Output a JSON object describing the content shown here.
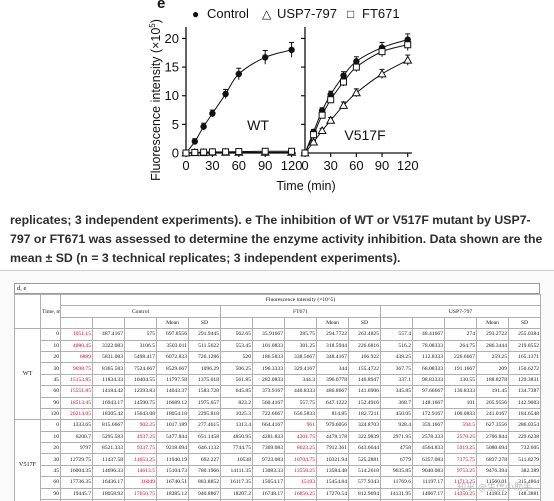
{
  "figure": {
    "panel_letter": "e",
    "legend": [
      "Control",
      "USP7-797",
      "FT671"
    ],
    "legend_symbols": [
      "●",
      "△",
      "□"
    ],
    "ylabel": "Fluorescence intensity (×10",
    "ylabel_sup": "5",
    "ylabel_close": ")",
    "xlabel": "Time (min)",
    "panel_labels": [
      "WT",
      "V517F"
    ]
  },
  "chart_data": {
    "type": "line",
    "xlabel": "Time (min)",
    "ylabel": "Fluorescence intensity (×10^5)",
    "x": [
      0,
      10,
      20,
      30,
      45,
      60,
      90,
      120
    ],
    "xticks": [
      0,
      30,
      60,
      90,
      120
    ],
    "yticks": [
      0,
      5,
      10,
      15,
      20
    ],
    "ylim": [
      0,
      22
    ],
    "xlim": [
      0,
      125
    ],
    "legend_position": "top",
    "colors": {
      "axis": "#111111",
      "series": "#111111",
      "error": "#111111"
    },
    "panels": [
      {
        "label": "WT",
        "series": [
          {
            "name": "Control",
            "marker": "filled-circle",
            "values": [
              0,
              2.0,
              4.6,
              6.9,
              10.3,
              13.8,
              16.7,
              18.0
            ],
            "error": [
              0.3,
              0.5,
              0.6,
              0.6,
              0.8,
              1.0,
              1.2,
              1.3
            ],
            "fit": true
          },
          {
            "name": "USP7-797",
            "marker": "open-triangle",
            "values": [
              0,
              0.05,
              0.05,
              0.1,
              0.1,
              0.1,
              0.1,
              0.1
            ],
            "error": [
              0,
              0,
              0,
              0,
              0,
              0,
              0,
              0
            ],
            "fit": false
          },
          {
            "name": "FT671",
            "marker": "open-square",
            "values": [
              0,
              0.1,
              0.15,
              0.2,
              0.2,
              0.25,
              0.3,
              0.3
            ],
            "error": [
              0,
              0,
              0,
              0,
              0,
              0,
              0,
              0
            ],
            "fit": false
          }
        ]
      },
      {
        "label": "V517F",
        "series": [
          {
            "name": "Control",
            "marker": "filled-circle",
            "values": [
              0,
              3.7,
              7.4,
              10.2,
              13.5,
              16.0,
              18.4,
              19.8
            ],
            "error": [
              0.3,
              0.4,
              0.5,
              0.6,
              0.7,
              0.8,
              0.9,
              1.0
            ],
            "fit": true
          },
          {
            "name": "USP7-797",
            "marker": "open-triangle",
            "values": [
              0,
              1.9,
              3.9,
              5.7,
              8.3,
              10.5,
              13.8,
              16.2
            ],
            "error": [
              0.2,
              0.3,
              0.4,
              0.5,
              0.6,
              0.7,
              0.8,
              0.9
            ],
            "fit": true
          },
          {
            "name": "FT671",
            "marker": "open-square",
            "values": [
              0,
              3.2,
              6.6,
              9.3,
              12.4,
              15.0,
              17.7,
              18.9
            ],
            "error": [
              0.3,
              0.4,
              0.5,
              0.6,
              0.7,
              0.8,
              0.9,
              1.0
            ],
            "fit": true
          }
        ]
      }
    ]
  },
  "caption": {
    "text": "replicates; 3 independent experiments). e The inhibition of WT or V517F mutant by USP7-797 or FT671 was assessed to determine the enzyme activity inhibition. Data shown are the mean ± SD (n = 3 technical replicates; 3 independent experiments)."
  },
  "table": {
    "label": "d, e",
    "header_main": "Fluorescence intensity (×10^5)",
    "time_header": "Time, min",
    "groups": [
      "Control",
      "FT671",
      "USP7-797"
    ],
    "sub_headers": [
      "Mean",
      "SD",
      "Mean",
      "SD",
      "Mean",
      "SD"
    ],
    "red_color": "#d0021b",
    "watermark": "知乎 @生信小助手",
    "sections": [
      {
        "name": "WT",
        "rows": [
          {
            "time": "0",
            "cells": [
              "1051.15",
              "487.4167",
              "575",
              "697.8556",
              "291.9445",
              "562.65",
              "35.91667",
              "285.75",
              "294.7722",
              "263.4825",
              "557.4",
              "48.41667",
              "274",
              "293.2722",
              "255.0384"
            ],
            "red": [
              0
            ]
          },
          {
            "time": "10",
            "cells": [
              "4080.45",
              "3322.083",
              "3106.5",
              "3503.011",
              "511.5622",
              "553.45",
              "101.0833",
              "301.25",
              "318.5944",
              "226.6816",
              "516.2",
              "78.08333",
              "264.75",
              "286.3444",
              "219.8552"
            ],
            "red": [
              0
            ]
          },
          {
            "time": "20",
            "cells": [
              "6889",
              "5831.083",
              "5498.417",
              "6072.833",
              "726.1286",
              "520",
              "186.5833",
              "338.5667",
              "348.4167",
              "166.922",
              "438.25",
              "112.8333",
              "226.6667",
              "259.25",
              "165.1371"
            ],
            "red": [
              0
            ]
          },
          {
            "time": "30",
            "cells": [
              "9698.75",
              "8365.583",
              "7524.667",
              "8529.667",
              "1096.29",
              "506.25",
              "196.3333",
              "329.4167",
              "344",
              "155.4722",
              "367.75",
              "68.08333",
              "191.1667",
              "209",
              "150.6272"
            ],
            "red": [
              0
            ]
          },
          {
            "time": "45",
            "cells": [
              "15153.85",
              "11834.33",
              "10404.55",
              "11797.58",
              "1375.018",
              "561.85",
              "282.0833",
              "344.3",
              "396.0778",
              "146.8947",
              "337.1",
              "98.83333",
              "130.55",
              "188.8278",
              "129.3831"
            ],
            "red": [
              0
            ]
          },
          {
            "time": "60",
            "cells": [
              "15551.85",
              "14184.42",
              "12393.83",
              "14043.37",
              "1583.728",
              "645.85",
              "373.9167",
              "440.8333",
              "486.8667",
              "141.6906",
              "345.85",
              "97.66667",
              "130.8333",
              "191.45",
              "134.7387"
            ],
            "red": [
              0
            ]
          },
          {
            "time": "90",
            "cells": [
              "18513.45",
              "16943.17",
              "14590.75",
              "16689.12",
              "1975.657",
              "823.2",
              "560.4167",
              "557.75",
              "647.1222",
              "152.4916",
              "368.7",
              "148.1667",
              "101",
              "205.9556",
              "142.9003"
            ],
            "red": [
              0
            ]
          },
          {
            "time": "120",
            "cells": [
              "20214.05",
              "18305.42",
              "15643.08",
              "18054.18",
              "2295.818",
              "1025.3",
              "722.6667",
              "656.5833",
              "814.85",
              "182.7211",
              "450.05",
              "172.9167",
              "100.0833",
              "241.0167",
              "184.6548"
            ],
            "red": [
              0
            ]
          }
        ]
      },
      {
        "name": "V517F",
        "rows": [
          {
            "time": "0",
            "cells": [
              "1333.65",
              "815.6667",
              "902.25",
              "1017.189",
              "277.4615",
              "1313.4",
              "664.4167",
              "961",
              "979.6056",
              "324.8703",
              "928.4",
              "359.1667",
              "594.5",
              "627.3556",
              "286.0354"
            ],
            "red": [
              2,
              7,
              12
            ]
          },
          {
            "time": "10",
            "cells": [
              "6200.7",
              "5295.583",
              "4937.25",
              "5477.844",
              "651.1458",
              "4850.95",
              "4281.833",
              "4301.75",
              "4478.178",
              "322.9839",
              "2971.95",
              "2578.333",
              "2570.25",
              "2706.844",
              "229.6238"
            ],
            "red": [
              2,
              7,
              12
            ]
          },
          {
            "time": "20",
            "cells": [
              "9797",
              "8521.333",
              "9337.75",
              "9218.694",
              "646.1132",
              "7744.75",
              "7369.083",
              "8623.25",
              "7912.361",
              "643.6644",
              "4758",
              "4564.833",
              "5919.25",
              "5080.694",
              "732.605"
            ],
            "red": [
              2,
              7,
              12
            ]
          },
          {
            "time": "30",
            "cells": [
              "12729.75",
              "11437.58",
              "11653.25",
              "11940.19",
              "692.227",
              "10538",
              "9723.083",
              "10704.75",
              "10321.94",
              "525.2881",
              "6779",
              "6357.083",
              "7375.75",
              "6837.278",
              "511.8279"
            ],
            "red": [
              2,
              7,
              12
            ]
          },
          {
            "time": "45",
            "cells": [
              "16004.35",
              "14696.33",
              "14613.5",
              "15104.73",
              "780.1966",
              "14111.35",
              "13083.33",
              "13558.25",
              "13584.48",
              "514.2618",
              "9635.85",
              "9040.083",
              "9753.25",
              "9476.394",
              "382.389"
            ],
            "red": [
              2,
              7,
              12
            ]
          },
          {
            "time": "60",
            "cells": [
              "17736.35",
              "16436.17",
              "16049",
              "16740.51",
              "883.8852",
              "16117.35",
              "15054.17",
              "15193",
              "15454.84",
              "577.9343",
              "11769.6",
              "11197.17",
              "11713.25",
              "11560.01",
              "315.4864"
            ],
            "red": [
              2,
              7,
              12
            ]
          },
          {
            "time": "90",
            "cells": [
              "19445.7",
              "18058.92",
              "17650.75",
              "18385.12",
              "940.8867",
              "18207.2",
              "16748.17",
              "16856.25",
              "17270.54",
              "812.9694",
              "14131.95",
              "14067.17",
              "14350.25",
              "14183.12",
              "148.3881"
            ],
            "red": [
              2,
              7,
              12
            ]
          },
          {
            "time": "120",
            "cells": [
              "22036.75",
              "18829.42",
              "18370.5",
              "19745.56",
              "1997.455",
              "20671.75",
              "17502.67",
              "17539.5",
              "18571.31",
              "1819.13",
              "18373.75",
              "15295.42",
              "15454.25",
              "16374.39",
              "1733.1"
            ],
            "red": [
              2,
              7,
              12
            ]
          }
        ]
      }
    ]
  }
}
